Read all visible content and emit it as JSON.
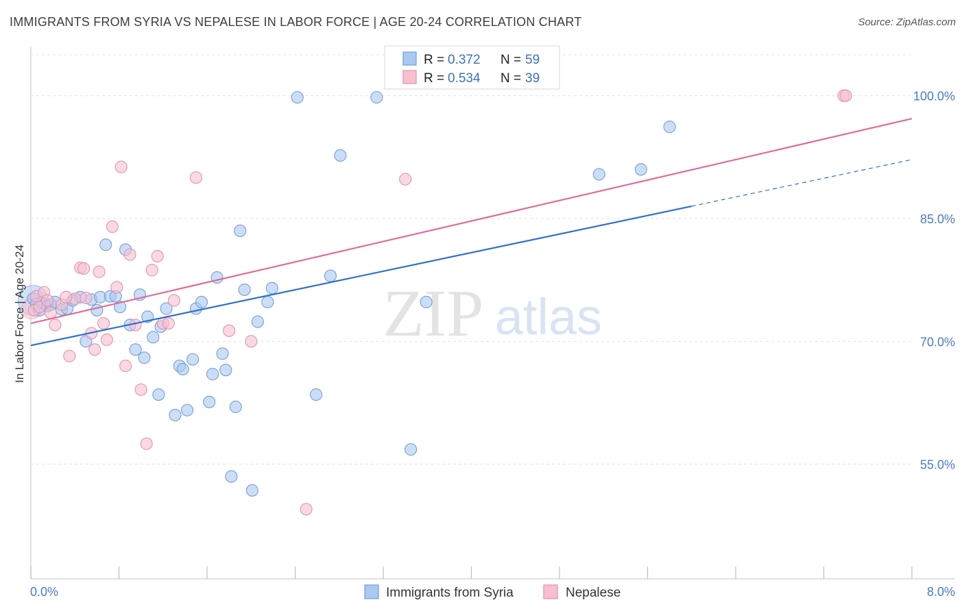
{
  "header": {
    "title": "IMMIGRANTS FROM SYRIA VS NEPALESE IN LABOR FORCE | AGE 20-24 CORRELATION CHART",
    "source": "Source: ZipAtlas.com"
  },
  "watermark": {
    "zip": "ZIP",
    "atlas": "atlas"
  },
  "legend": {
    "items": [
      {
        "r_label": "R =",
        "r_value": "0.372",
        "n_label": "N =",
        "n_value": "59"
      },
      {
        "r_label": "R =",
        "r_value": "0.534",
        "n_label": "N =",
        "n_value": "39"
      }
    ]
  },
  "chart_data": {
    "type": "scatter",
    "title": "IMMIGRANTS FROM SYRIA VS NEPALESE IN LABOR FORCE | AGE 20-24 CORRELATION CHART",
    "xlabel": "",
    "ylabel": "In Labor Force | Age 20-24",
    "xlim": [
      0.0,
      8.0
    ],
    "ylim": [
      41.0,
      106.0
    ],
    "x_tick_labels": [
      "0.0%",
      "8.0%"
    ],
    "y_ticks": [
      55.0,
      70.0,
      85.0,
      100.0
    ],
    "y_tick_labels": [
      "55.0%",
      "70.0%",
      "85.0%",
      "100.0%"
    ],
    "grid": true,
    "colors": {
      "syria_fill": "#aac8f0",
      "syria_stroke": "#6f9fdc",
      "syria_line": "#2c6fce",
      "nepal_fill": "#f7bfd0",
      "nepal_stroke": "#e591ad",
      "nepal_line": "#e06c97",
      "tick": "#4a7ac7",
      "grid": "#dfe3ea"
    },
    "series": [
      {
        "name": "Immigrants from Syria",
        "r": 0.372,
        "n": 59,
        "trend": {
          "x0": 0.0,
          "y0": 69.5,
          "x1": 6.0,
          "y1": 86.5,
          "dash_to_x": 8.0,
          "dash_to_y": 92.2
        },
        "points": [
          [
            0.02,
            75.2
          ],
          [
            0.08,
            73.8
          ],
          [
            0.1,
            74.7
          ],
          [
            0.15,
            74.3
          ],
          [
            0.18,
            74.5
          ],
          [
            0.22,
            74.8
          ],
          [
            0.28,
            73.9
          ],
          [
            0.33,
            74.0
          ],
          [
            0.38,
            75.0
          ],
          [
            0.45,
            75.4
          ],
          [
            0.5,
            70.0
          ],
          [
            0.55,
            75.1
          ],
          [
            0.6,
            73.8
          ],
          [
            0.63,
            75.4
          ],
          [
            0.68,
            81.8
          ],
          [
            0.72,
            75.5
          ],
          [
            0.77,
            75.5
          ],
          [
            0.81,
            74.2
          ],
          [
            0.86,
            81.2
          ],
          [
            0.9,
            72.0
          ],
          [
            0.95,
            69.0
          ],
          [
            0.99,
            75.7
          ],
          [
            1.03,
            68.0
          ],
          [
            1.06,
            73.0
          ],
          [
            1.11,
            70.5
          ],
          [
            1.16,
            63.5
          ],
          [
            1.18,
            71.8
          ],
          [
            1.23,
            74.0
          ],
          [
            1.31,
            61.0
          ],
          [
            1.35,
            67.0
          ],
          [
            1.38,
            66.6
          ],
          [
            1.42,
            61.6
          ],
          [
            1.47,
            67.8
          ],
          [
            1.5,
            74.0
          ],
          [
            1.55,
            74.8
          ],
          [
            1.62,
            62.6
          ],
          [
            1.65,
            66.0
          ],
          [
            1.69,
            77.8
          ],
          [
            1.74,
            68.5
          ],
          [
            1.77,
            66.5
          ],
          [
            1.82,
            53.5
          ],
          [
            1.86,
            62.0
          ],
          [
            1.9,
            83.5
          ],
          [
            1.94,
            76.3
          ],
          [
            2.01,
            51.8
          ],
          [
            2.06,
            72.4
          ],
          [
            2.15,
            74.8
          ],
          [
            2.19,
            76.5
          ],
          [
            2.42,
            99.8
          ],
          [
            2.59,
            63.5
          ],
          [
            2.72,
            78.0
          ],
          [
            2.81,
            92.7
          ],
          [
            3.14,
            99.8
          ],
          [
            3.45,
            56.8
          ],
          [
            3.59,
            74.8
          ],
          [
            5.16,
            90.4
          ],
          [
            5.54,
            91.0
          ],
          [
            5.8,
            96.2
          ],
          [
            0.05,
            74.6
          ]
        ]
      },
      {
        "name": "Nepalese",
        "r": 0.534,
        "n": 39,
        "trend": {
          "x0": 0.0,
          "y0": 72.2,
          "x1": 8.0,
          "y1": 97.2
        },
        "points": [
          [
            0.03,
            73.8
          ],
          [
            0.05,
            75.5
          ],
          [
            0.08,
            74.2
          ],
          [
            0.12,
            76.0
          ],
          [
            0.18,
            73.5
          ],
          [
            0.22,
            72.0
          ],
          [
            0.28,
            74.5
          ],
          [
            0.35,
            68.2
          ],
          [
            0.4,
            75.2
          ],
          [
            0.45,
            79.0
          ],
          [
            0.5,
            75.3
          ],
          [
            0.55,
            71.0
          ],
          [
            0.58,
            69.0
          ],
          [
            0.62,
            78.5
          ],
          [
            0.66,
            72.2
          ],
          [
            0.69,
            70.2
          ],
          [
            0.74,
            84.0
          ],
          [
            0.78,
            76.6
          ],
          [
            0.82,
            91.3
          ],
          [
            0.86,
            67.0
          ],
          [
            0.9,
            80.6
          ],
          [
            0.95,
            72.0
          ],
          [
            1.0,
            64.1
          ],
          [
            1.05,
            57.5
          ],
          [
            1.1,
            78.7
          ],
          [
            1.15,
            80.4
          ],
          [
            1.2,
            72.2
          ],
          [
            1.25,
            72.2
          ],
          [
            1.3,
            75.0
          ],
          [
            1.5,
            90.0
          ],
          [
            1.8,
            71.3
          ],
          [
            2.0,
            70.0
          ],
          [
            2.5,
            49.5
          ],
          [
            3.4,
            89.8
          ],
          [
            7.38,
            100.0
          ],
          [
            7.4,
            100.0
          ],
          [
            0.32,
            75.4
          ],
          [
            0.48,
            78.9
          ],
          [
            0.15,
            75.0
          ]
        ]
      }
    ]
  },
  "bottom_legend": {
    "items": [
      {
        "label": "Immigrants from Syria"
      },
      {
        "label": "Nepalese"
      }
    ]
  }
}
